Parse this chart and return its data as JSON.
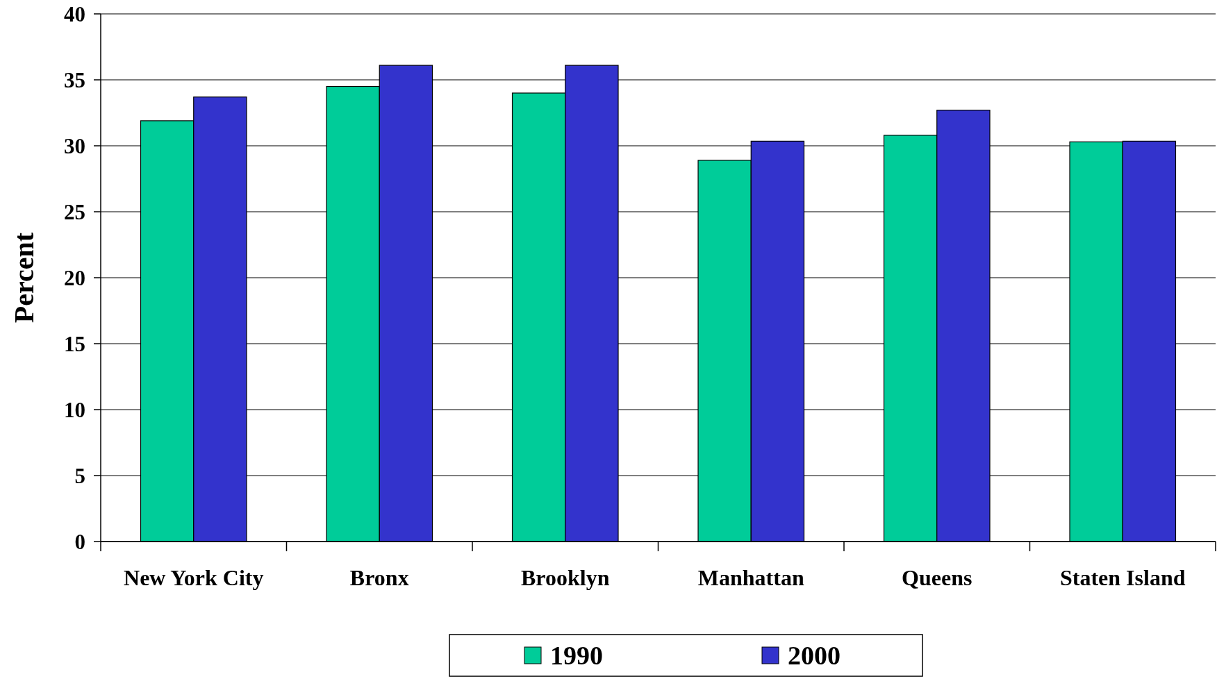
{
  "chart_data": {
    "type": "bar",
    "ylabel": "Percent",
    "categories": [
      "New York City",
      "Bronx",
      "Brooklyn",
      "Manhattan",
      "Queens",
      "Staten Island"
    ],
    "series": [
      {
        "name": "1990",
        "color": "#00cc99",
        "values": [
          31.9,
          34.5,
          34.0,
          28.9,
          30.8,
          30.3
        ]
      },
      {
        "name": "2000",
        "color": "#3333cc",
        "values": [
          33.7,
          36.1,
          36.1,
          30.35,
          32.7,
          30.35
        ]
      }
    ],
    "ylim": [
      0,
      40
    ],
    "yticks": [
      0,
      5,
      10,
      15,
      20,
      25,
      30,
      35,
      40
    ],
    "grid": "y",
    "legend": "bottom"
  }
}
